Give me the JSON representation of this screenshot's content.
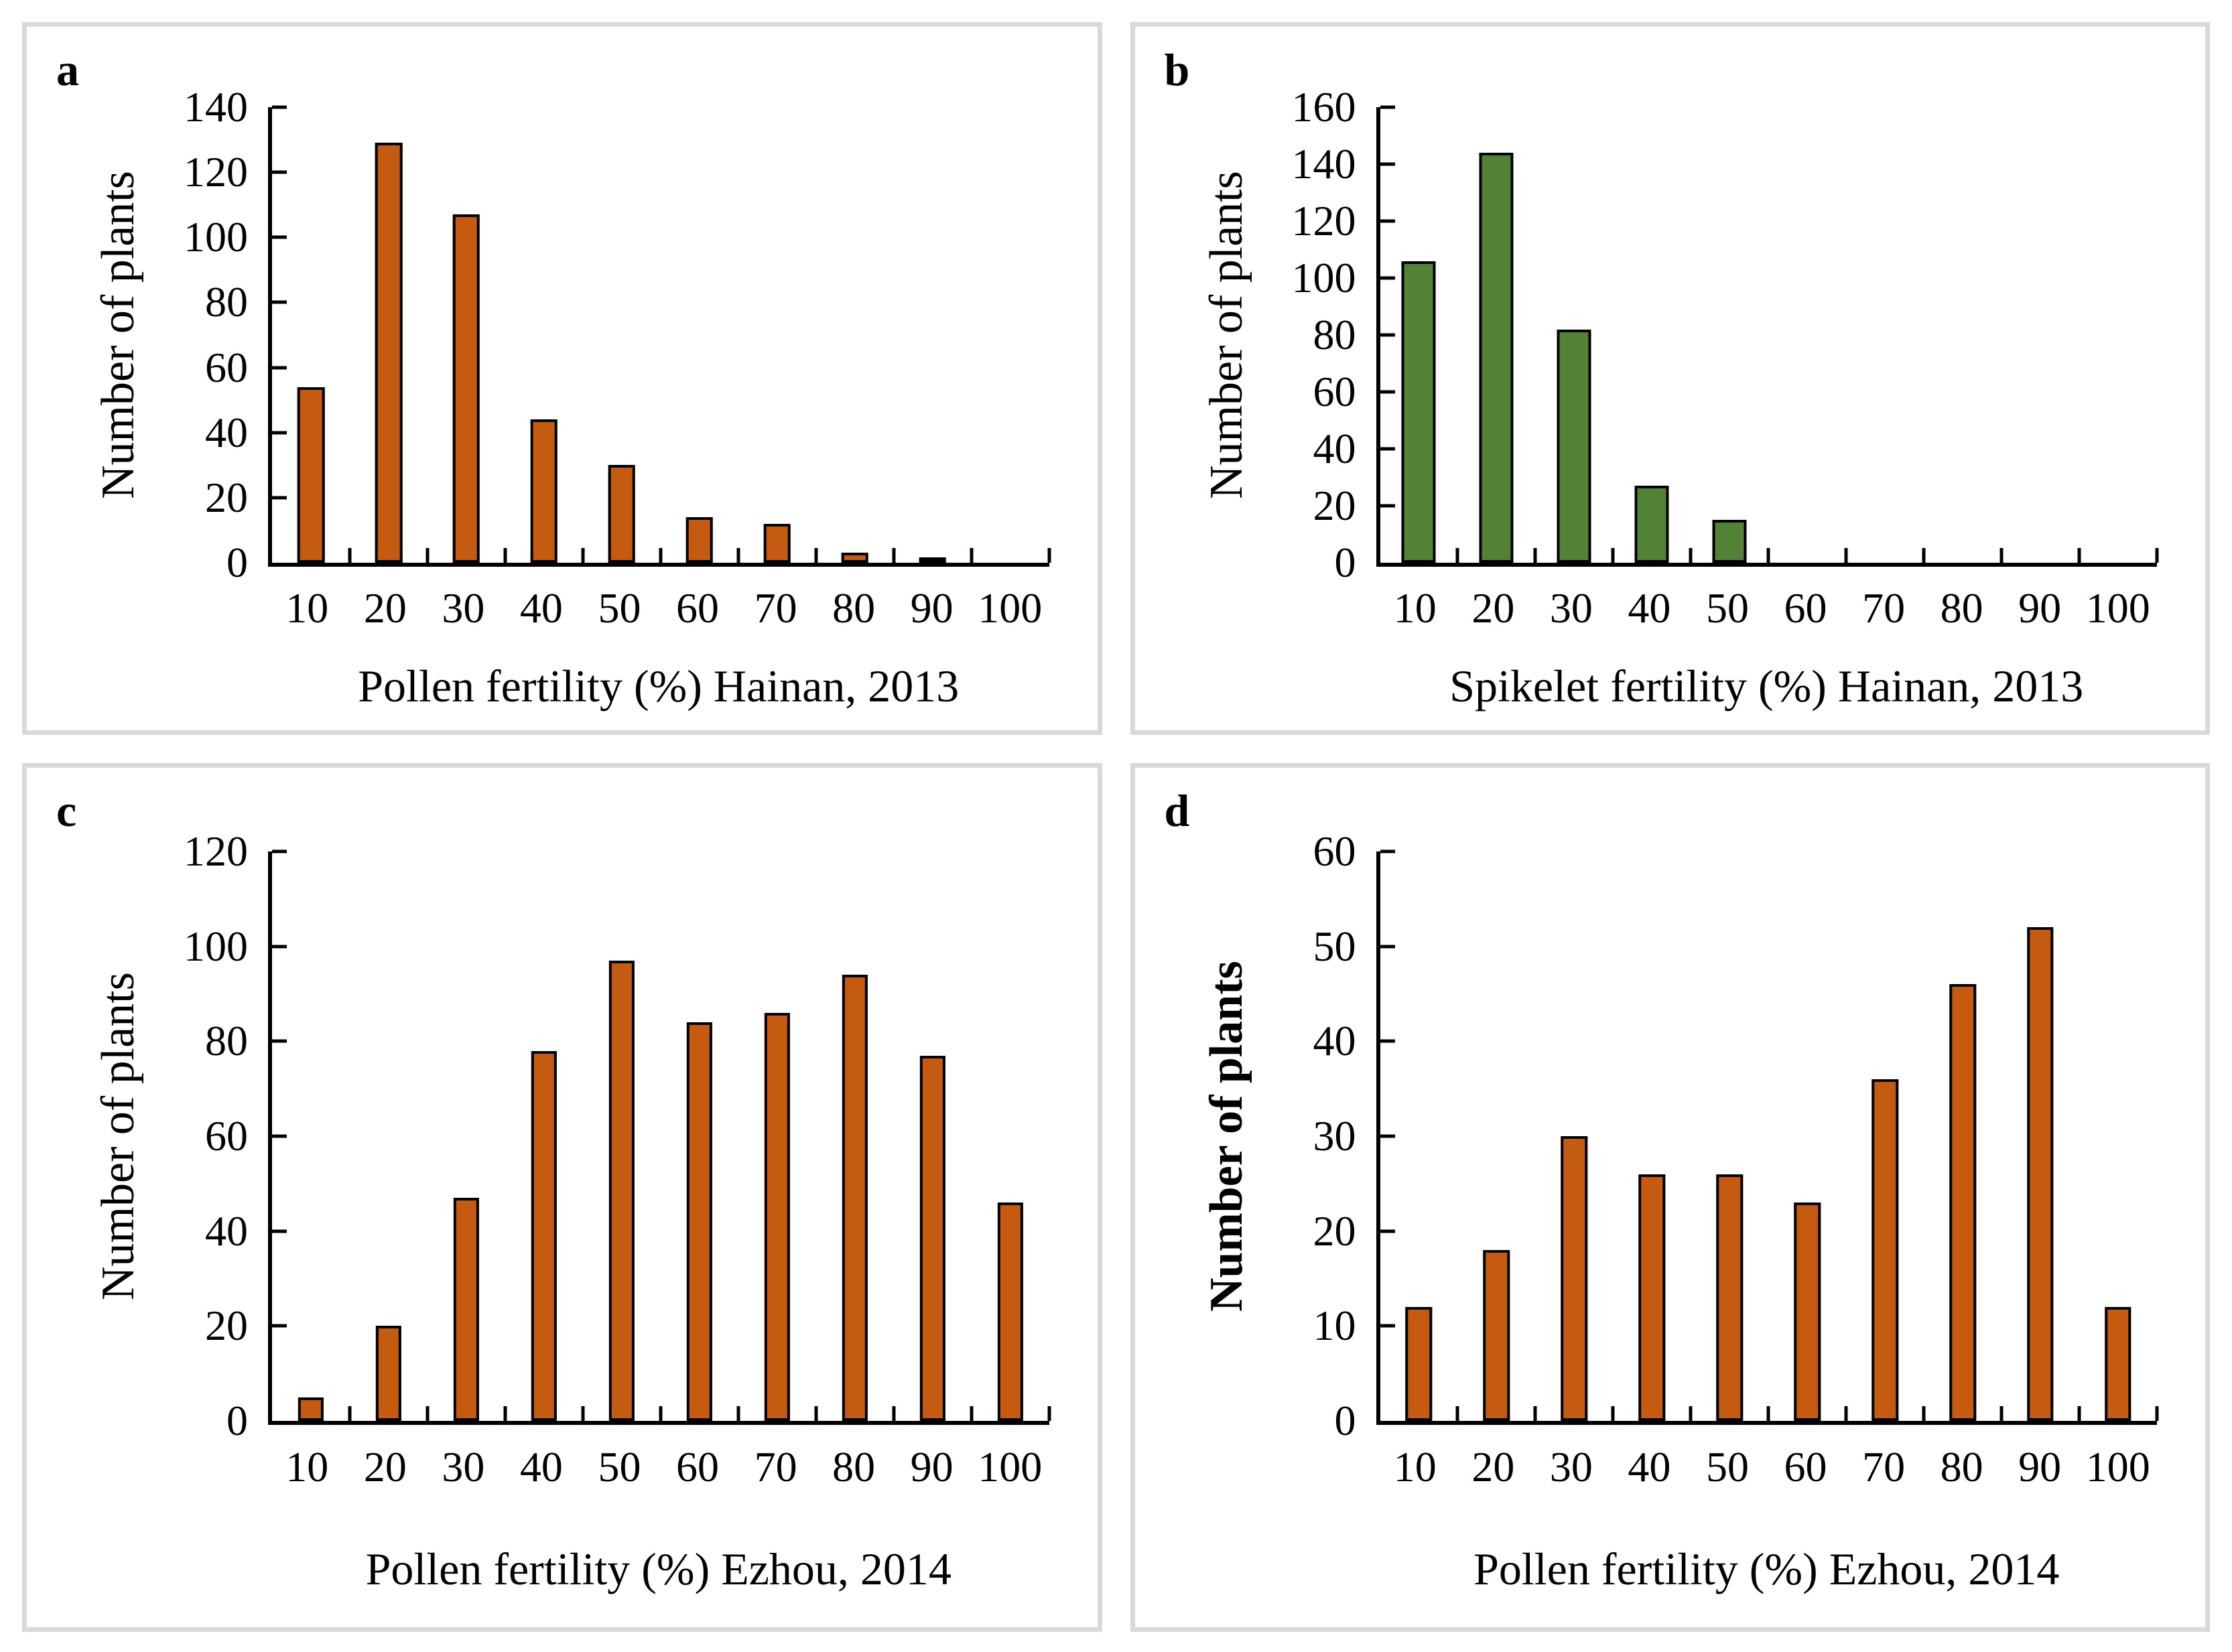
{
  "figure": {
    "background_color": "#FFFFFF",
    "panel_border_color": "#D9D9D9",
    "axis_color": "#000000",
    "bar_outline_color": "#000000",
    "orange_fill": "#C55A11",
    "green_fill": "#538135"
  },
  "chart_data": [
    {
      "type": "bar",
      "panel_letter": "a",
      "categories": [
        "10",
        "20",
        "30",
        "40",
        "50",
        "60",
        "70",
        "80",
        "90",
        "100"
      ],
      "values": [
        54,
        129,
        107,
        44,
        30,
        14,
        12,
        3,
        1,
        0
      ],
      "xlabel": "Pollen fertility (%) Hainan, 2013",
      "ylabel": "Number of plants",
      "ylim": [
        0,
        140
      ],
      "y_tick_step": 20,
      "bar_color": "#C55A11",
      "bar_border": "#000000",
      "grid": false,
      "legend": false,
      "tick_style": "inside"
    },
    {
      "type": "bar",
      "panel_letter": "b",
      "categories": [
        "10",
        "20",
        "30",
        "40",
        "50",
        "60",
        "70",
        "80",
        "90",
        "100"
      ],
      "values": [
        106,
        144,
        82,
        27,
        15,
        0,
        0,
        0,
        0,
        0
      ],
      "xlabel": "Spikelet fertility (%) Hainan, 2013",
      "ylabel": "Number of plants",
      "ylim": [
        0,
        160
      ],
      "y_tick_step": 20,
      "bar_color": "#538135",
      "bar_border": "#000000",
      "grid": false,
      "legend": false,
      "tick_style": "inside"
    },
    {
      "type": "bar",
      "panel_letter": "c",
      "categories": [
        "10",
        "20",
        "30",
        "40",
        "50",
        "60",
        "70",
        "80",
        "90",
        "100"
      ],
      "values": [
        5,
        20,
        47,
        78,
        97,
        84,
        86,
        94,
        77,
        46
      ],
      "xlabel": "Pollen fertility (%) Ezhou, 2014",
      "ylabel": "Number of plants",
      "ylim": [
        0,
        120
      ],
      "y_tick_step": 20,
      "bar_color": "#C55A11",
      "bar_border": "#000000",
      "grid": false,
      "legend": false,
      "tick_style": "inside"
    },
    {
      "type": "bar",
      "panel_letter": "d",
      "categories": [
        "10",
        "20",
        "30",
        "40",
        "50",
        "60",
        "70",
        "80",
        "90",
        "100"
      ],
      "values": [
        12,
        18,
        30,
        26,
        26,
        23,
        36,
        46,
        52,
        12
      ],
      "xlabel": "Pollen fertility (%) Ezhou, 2014",
      "ylabel": "Number of plants",
      "ylim": [
        0,
        60
      ],
      "y_tick_step": 10,
      "bar_color": "#C55A11",
      "bar_border": "#000000",
      "grid": false,
      "legend": false,
      "tick_style": "inside"
    }
  ]
}
